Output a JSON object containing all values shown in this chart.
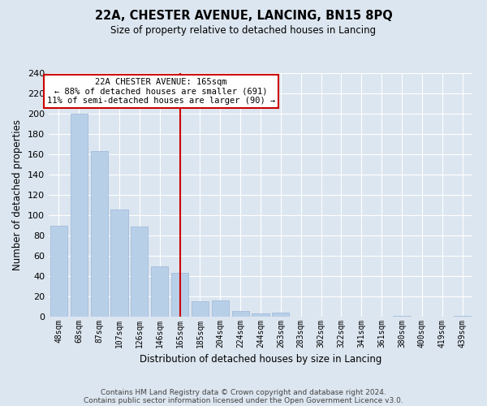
{
  "title": "22A, CHESTER AVENUE, LANCING, BN15 8PQ",
  "subtitle": "Size of property relative to detached houses in Lancing",
  "xlabel": "Distribution of detached houses by size in Lancing",
  "ylabel": "Number of detached properties",
  "bar_labels": [
    "48sqm",
    "68sqm",
    "87sqm",
    "107sqm",
    "126sqm",
    "146sqm",
    "165sqm",
    "185sqm",
    "204sqm",
    "224sqm",
    "244sqm",
    "263sqm",
    "283sqm",
    "302sqm",
    "322sqm",
    "341sqm",
    "361sqm",
    "380sqm",
    "400sqm",
    "419sqm",
    "439sqm"
  ],
  "bar_values": [
    90,
    200,
    163,
    106,
    89,
    50,
    43,
    15,
    16,
    6,
    3,
    4,
    0,
    0,
    0,
    0,
    0,
    1,
    0,
    0,
    1
  ],
  "bar_color": "#b8cfe8",
  "bar_edge_color": "#9ab5d8",
  "vline_x": 6,
  "vline_color": "#cc0000",
  "annotation_text": "22A CHESTER AVENUE: 165sqm\n← 88% of detached houses are smaller (691)\n11% of semi-detached houses are larger (90) →",
  "annotation_box_edgecolor": "#cc0000",
  "annotation_box_facecolor": "#ffffff",
  "ylim": [
    0,
    240
  ],
  "yticks": [
    0,
    20,
    40,
    60,
    80,
    100,
    120,
    140,
    160,
    180,
    200,
    220,
    240
  ],
  "footer_line1": "Contains HM Land Registry data © Crown copyright and database right 2024.",
  "footer_line2": "Contains public sector information licensed under the Open Government Licence v3.0.",
  "bg_color": "#dce6f0",
  "plot_bg_color": "#dce6f0"
}
